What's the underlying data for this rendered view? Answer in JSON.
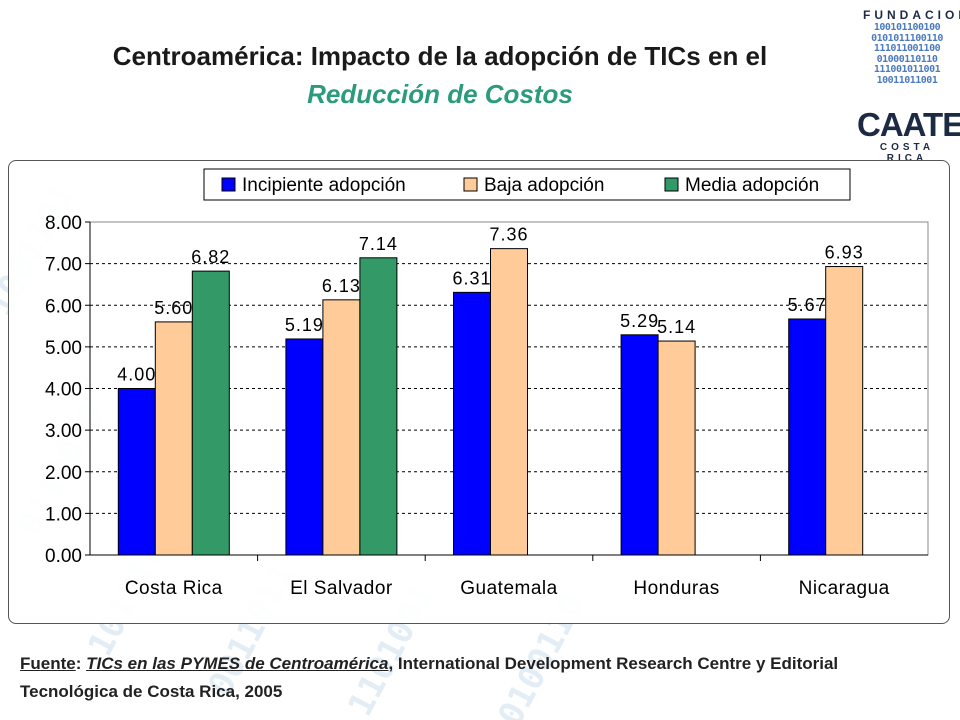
{
  "title": {
    "line1": "Centroamérica: Impacto de la adopción de TICs en el",
    "line2": "Reducción de Costos"
  },
  "logo": {
    "top": "FUNDACION",
    "brand": "CAATEC",
    "bottom": "COSTA RICA",
    "binary": [
      "100101100100",
      "0101011100110",
      "111011001100",
      "01000110110",
      "111001011001",
      "10011011001"
    ]
  },
  "colors": {
    "incipiente": "#0000ff",
    "baja": "#ffcc99",
    "media": "#339966",
    "title_accent": "#2a9c7d"
  },
  "chart_data": {
    "type": "bar",
    "title": "",
    "xlabel": "",
    "ylabel": "",
    "ylim": [
      0,
      8
    ],
    "yticks": [
      "0.00",
      "1.00",
      "2.00",
      "3.00",
      "4.00",
      "5.00",
      "6.00",
      "7.00",
      "8.00"
    ],
    "grid": true,
    "legend_position": "top",
    "categories": [
      "Costa Rica",
      "El Salvador",
      "Guatemala",
      "Honduras",
      "Nicaragua"
    ],
    "series": [
      {
        "name": "Incipiente adopción",
        "color": "#0000ff",
        "values": [
          4.0,
          5.19,
          6.31,
          5.29,
          5.67
        ],
        "labels": [
          "4.00",
          "5.19",
          "6.31",
          "5.29",
          "5.67"
        ]
      },
      {
        "name": "Baja adopción",
        "color": "#ffcc99",
        "values": [
          5.6,
          6.13,
          7.36,
          5.14,
          6.93
        ],
        "labels": [
          "5.60",
          "6.13",
          "7.36",
          "5.14",
          "6.93"
        ]
      },
      {
        "name": "Media adopción",
        "color": "#339966",
        "values": [
          6.82,
          7.14,
          null,
          null,
          null
        ],
        "labels": [
          "6.82",
          "7.14",
          null,
          null,
          null
        ]
      }
    ]
  },
  "source": {
    "label": "Fuente",
    "colon": ": ",
    "work": "TICs en las PYMES de Centroamérica",
    "rest": ", International Development Research Centre y Editorial Tecnológica de Costa Rica, 2005"
  }
}
